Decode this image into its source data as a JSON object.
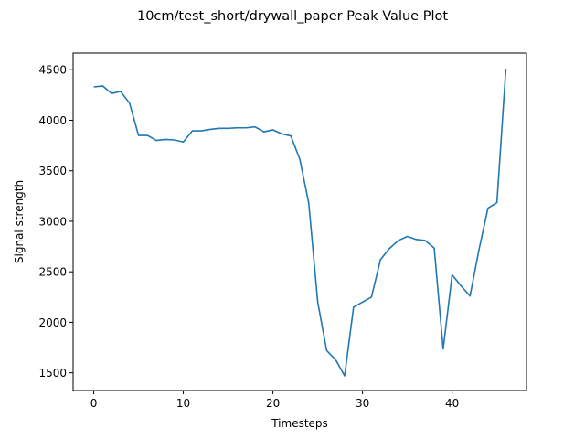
{
  "chart_data": {
    "type": "line",
    "title": "10cm/test_short/drywall_paper Peak Value Plot",
    "xlabel": "Timesteps",
    "ylabel": "Signal strength",
    "xlim": [
      -2.3,
      48.3
    ],
    "ylim": [
      1325,
      4665
    ],
    "xticks": [
      0,
      10,
      20,
      30,
      40
    ],
    "yticks": [
      1500,
      2000,
      2500,
      3000,
      3500,
      4000,
      4500
    ],
    "grid": false,
    "line_color": "#1f77b4",
    "series": [
      {
        "x": [
          0,
          1,
          2,
          3,
          4,
          5,
          6,
          7,
          8,
          9,
          10,
          11,
          12,
          13,
          14,
          15,
          16,
          17,
          18,
          19,
          20,
          21,
          22,
          23,
          24,
          25,
          26,
          27,
          28,
          29,
          30,
          31,
          32,
          33,
          34,
          35,
          36,
          37,
          38,
          39,
          40,
          41,
          42,
          43,
          44,
          45,
          46
        ],
        "values": [
          4330,
          4340,
          4265,
          4285,
          4170,
          3850,
          3850,
          3800,
          3810,
          3805,
          3785,
          3895,
          3895,
          3910,
          3920,
          3920,
          3925,
          3925,
          3935,
          3885,
          3905,
          3865,
          3845,
          3615,
          3180,
          2200,
          1720,
          1630,
          1470,
          2150,
          2200,
          2250,
          2620,
          2730,
          2810,
          2850,
          2820,
          2810,
          2735,
          1735,
          2470,
          2360,
          2260,
          2720,
          3130,
          3185,
          4510
        ]
      }
    ]
  }
}
